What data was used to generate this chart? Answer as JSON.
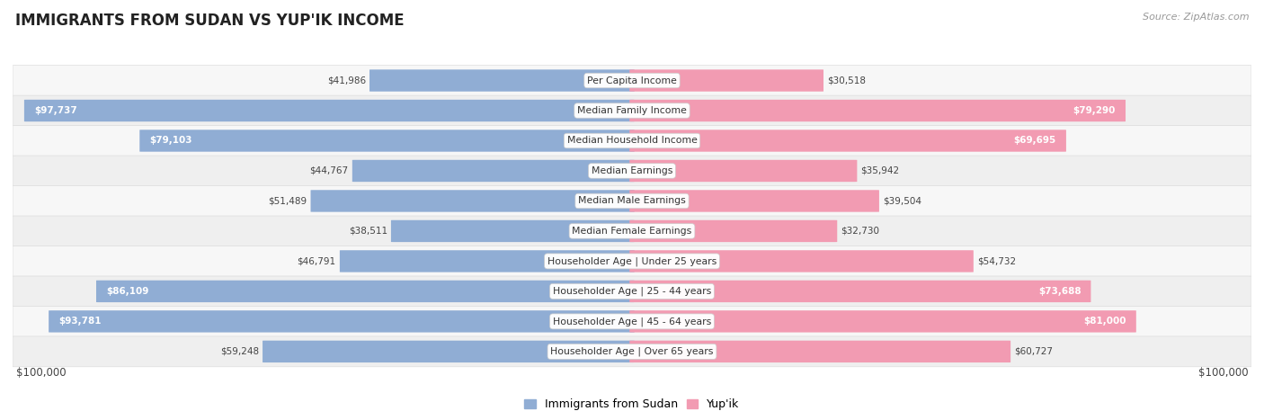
{
  "title": "IMMIGRANTS FROM SUDAN VS YUP'IK INCOME",
  "source": "Source: ZipAtlas.com",
  "categories": [
    "Per Capita Income",
    "Median Family Income",
    "Median Household Income",
    "Median Earnings",
    "Median Male Earnings",
    "Median Female Earnings",
    "Householder Age | Under 25 years",
    "Householder Age | 25 - 44 years",
    "Householder Age | 45 - 64 years",
    "Householder Age | Over 65 years"
  ],
  "sudan_values": [
    41986,
    97737,
    79103,
    44767,
    51489,
    38511,
    46791,
    86109,
    93781,
    59248
  ],
  "yupik_values": [
    30518,
    79290,
    69695,
    35942,
    39504,
    32730,
    54732,
    73688,
    81000,
    60727
  ],
  "sudan_labels": [
    "$41,986",
    "$97,737",
    "$79,103",
    "$44,767",
    "$51,489",
    "$38,511",
    "$46,791",
    "$86,109",
    "$93,781",
    "$59,248"
  ],
  "yupik_labels": [
    "$30,518",
    "$79,290",
    "$69,695",
    "$35,942",
    "$39,504",
    "$32,730",
    "$54,732",
    "$73,688",
    "$81,000",
    "$60,727"
  ],
  "sudan_color": "#90add4",
  "yupik_color": "#f29bb2",
  "yupik_color_bright": "#e8607a",
  "max_value": 100000,
  "x_label_left": "$100,000",
  "x_label_right": "$100,000",
  "legend_sudan": "Immigrants from Sudan",
  "legend_yupik": "Yup'ik",
  "background_color": "#ffffff",
  "row_bg_light": "#f7f7f7",
  "row_bg_dark": "#efefef",
  "row_border": "#dddddd"
}
